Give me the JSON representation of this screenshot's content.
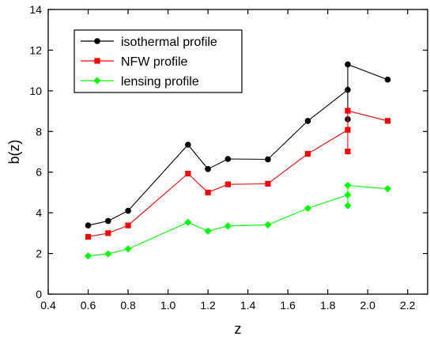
{
  "chart_data": {
    "type": "line",
    "xlabel": "z",
    "ylabel": "b(z)",
    "xlim": [
      0.4,
      2.3
    ],
    "ylim": [
      0,
      14
    ],
    "x_ticks": [
      "0.4",
      "0.6",
      "0.8",
      "1.0",
      "1.2",
      "1.4",
      "1.6",
      "1.8",
      "2.0",
      "2.2"
    ],
    "y_ticks": [
      "0",
      "2",
      "4",
      "6",
      "8",
      "10",
      "12",
      "14"
    ],
    "grid": false,
    "legend_position": "top-left",
    "series": [
      {
        "name": "isothermal profile",
        "color": "#000000",
        "marker": "circle",
        "points": [
          [
            0.6,
            3.38
          ],
          [
            0.7,
            3.6
          ],
          [
            0.8,
            4.1
          ],
          [
            1.1,
            7.35
          ],
          [
            1.2,
            6.15
          ],
          [
            1.3,
            6.65
          ],
          [
            1.5,
            6.63
          ],
          [
            1.7,
            8.52
          ],
          [
            1.9,
            10.05
          ],
          [
            1.9,
            8.6
          ],
          [
            1.9,
            11.3
          ],
          [
            2.1,
            10.55
          ]
        ]
      },
      {
        "name": "NFW profile",
        "color": "#ff0000",
        "marker": "square",
        "points": [
          [
            0.6,
            2.82
          ],
          [
            0.7,
            3.0
          ],
          [
            0.8,
            3.38
          ],
          [
            1.1,
            5.93
          ],
          [
            1.2,
            5.0
          ],
          [
            1.3,
            5.4
          ],
          [
            1.5,
            5.43
          ],
          [
            1.7,
            6.9
          ],
          [
            1.9,
            8.08
          ],
          [
            1.9,
            7.02
          ],
          [
            1.9,
            9.02
          ],
          [
            2.1,
            8.52
          ]
        ]
      },
      {
        "name": "lensing profile",
        "color": "#00ff00",
        "marker": "diamond",
        "points": [
          [
            0.6,
            1.88
          ],
          [
            0.7,
            1.98
          ],
          [
            0.8,
            2.22
          ],
          [
            1.1,
            3.53
          ],
          [
            1.2,
            3.1
          ],
          [
            1.3,
            3.35
          ],
          [
            1.5,
            3.41
          ],
          [
            1.7,
            4.22
          ],
          [
            1.9,
            4.88
          ],
          [
            1.9,
            4.35
          ],
          [
            1.9,
            5.35
          ],
          [
            2.1,
            5.18
          ]
        ]
      }
    ]
  }
}
